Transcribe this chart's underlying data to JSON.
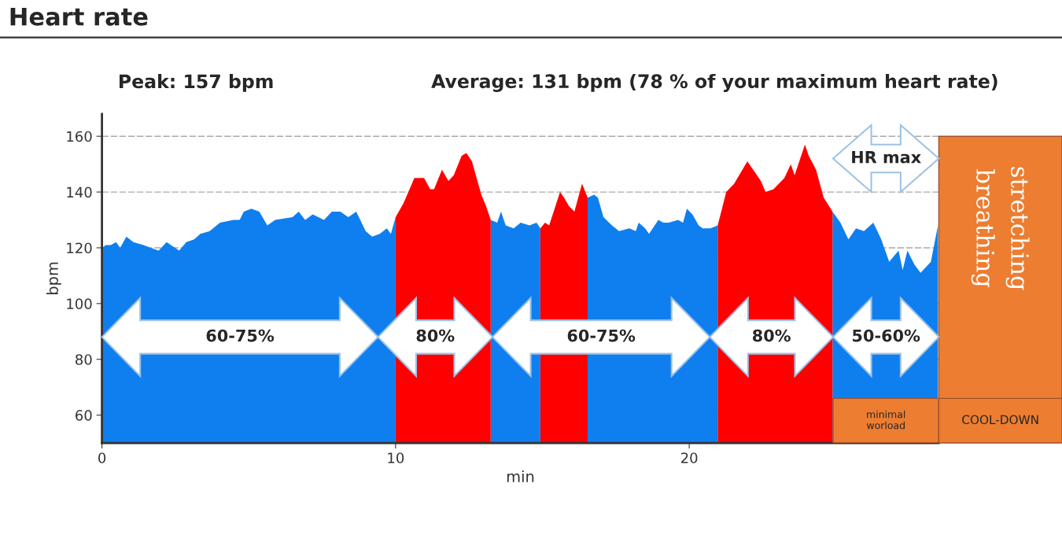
{
  "chart_data": {
    "type": "area",
    "title": "Heart rate",
    "xlabel": "min",
    "ylabel": "bpm",
    "xlim": [
      0,
      28.5
    ],
    "xticks": [
      0,
      10,
      20
    ],
    "ylim": [
      50,
      168
    ],
    "yticks": [
      60,
      80,
      100,
      120,
      140,
      160
    ],
    "grid": "y",
    "series": [
      {
        "color": "#0f7fef",
        "x": [
          0,
          0.13,
          0.3,
          0.48,
          0.62,
          0.83,
          1.07,
          1.42,
          1.66,
          1.93,
          2.2,
          2.49,
          2.63,
          2.87,
          3.14,
          3.35,
          3.67,
          4.02,
          4.48,
          4.69,
          4.83,
          5.09,
          5.36,
          5.63,
          5.9,
          6.49,
          6.7,
          6.92,
          7.18,
          7.56,
          7.83,
          8.12,
          8.39,
          8.66,
          8.98,
          9.2,
          9.46,
          9.7,
          9.84,
          10.0,
          11.6,
          13.24,
          13.46,
          13.59,
          13.75,
          14.02,
          14.26,
          14.56,
          14.8,
          14.93,
          15.8,
          16.54,
          16.76,
          16.89,
          17.08,
          17.37,
          17.61,
          17.96,
          18.18,
          18.28,
          18.5,
          18.63,
          18.95,
          19.12,
          19.3,
          19.62,
          19.79,
          19.92,
          20.11,
          20.32,
          20.46,
          20.72,
          20.97,
          22.9,
          24.88,
          25.15,
          25.42,
          25.68,
          25.95,
          26.27,
          26.54,
          26.81,
          27.13,
          27.27,
          27.43,
          27.67,
          27.88,
          28.23,
          28.47
        ],
        "values": [
          120,
          121,
          121,
          122,
          120,
          124,
          122,
          121,
          120,
          119,
          122,
          120,
          119,
          122,
          123,
          125,
          126,
          129,
          130,
          130,
          133,
          134,
          133,
          128,
          130,
          131,
          133,
          130,
          132,
          130,
          133,
          133,
          131,
          133,
          126,
          124,
          125,
          127,
          125,
          131,
          null,
          130,
          129,
          133,
          128,
          127,
          129,
          128,
          129,
          127,
          null,
          138,
          139,
          138,
          131,
          128,
          126,
          127,
          126,
          129,
          127,
          125,
          130,
          129,
          129,
          130,
          129,
          134,
          132,
          128,
          127,
          127,
          128,
          null,
          133,
          129,
          123,
          127,
          126,
          129,
          123,
          115,
          119,
          112,
          119,
          114,
          111,
          115,
          128
        ]
      },
      {
        "color": "#ff0000",
        "x": [
          10.0,
          10.27,
          10.64,
          10.72,
          10.97,
          11.18,
          11.31,
          11.58,
          11.8,
          11.98,
          12.25,
          12.41,
          12.6,
          12.92,
          13.08,
          13.24,
          14.1,
          14.93,
          15.09,
          15.23,
          15.6,
          15.74,
          15.9,
          16.09,
          16.35,
          16.54,
          18.7,
          20.97,
          21.26,
          21.53,
          21.98,
          22.44,
          22.6,
          22.87,
          23.24,
          23.46,
          23.59,
          23.94,
          24.07,
          24.32,
          24.58,
          24.88
        ],
        "values": [
          131,
          136,
          145,
          145,
          145,
          141,
          141,
          148,
          144,
          146,
          153,
          154,
          151,
          139,
          135,
          130,
          null,
          127,
          129,
          128,
          140,
          138,
          135,
          133,
          143,
          138,
          null,
          128,
          140,
          143,
          151,
          144,
          140,
          141,
          145,
          150,
          146,
          157,
          153,
          148,
          138,
          133
        ]
      }
    ],
    "bands": [
      {
        "axis": "x",
        "from": 24.9,
        "to": 28.5,
        "label": "minimal\nworload",
        "color": "#ed7d31"
      }
    ],
    "annotations": [
      "60-75%",
      "80%",
      "60-75%",
      "80%",
      "50-60%",
      "HR max",
      "Peak: 157 bpm",
      "Average: 131 bpm (78 % of your maximum heart rate)",
      "COOL-DOWN",
      "stretching\nbreathing"
    ]
  }
}
